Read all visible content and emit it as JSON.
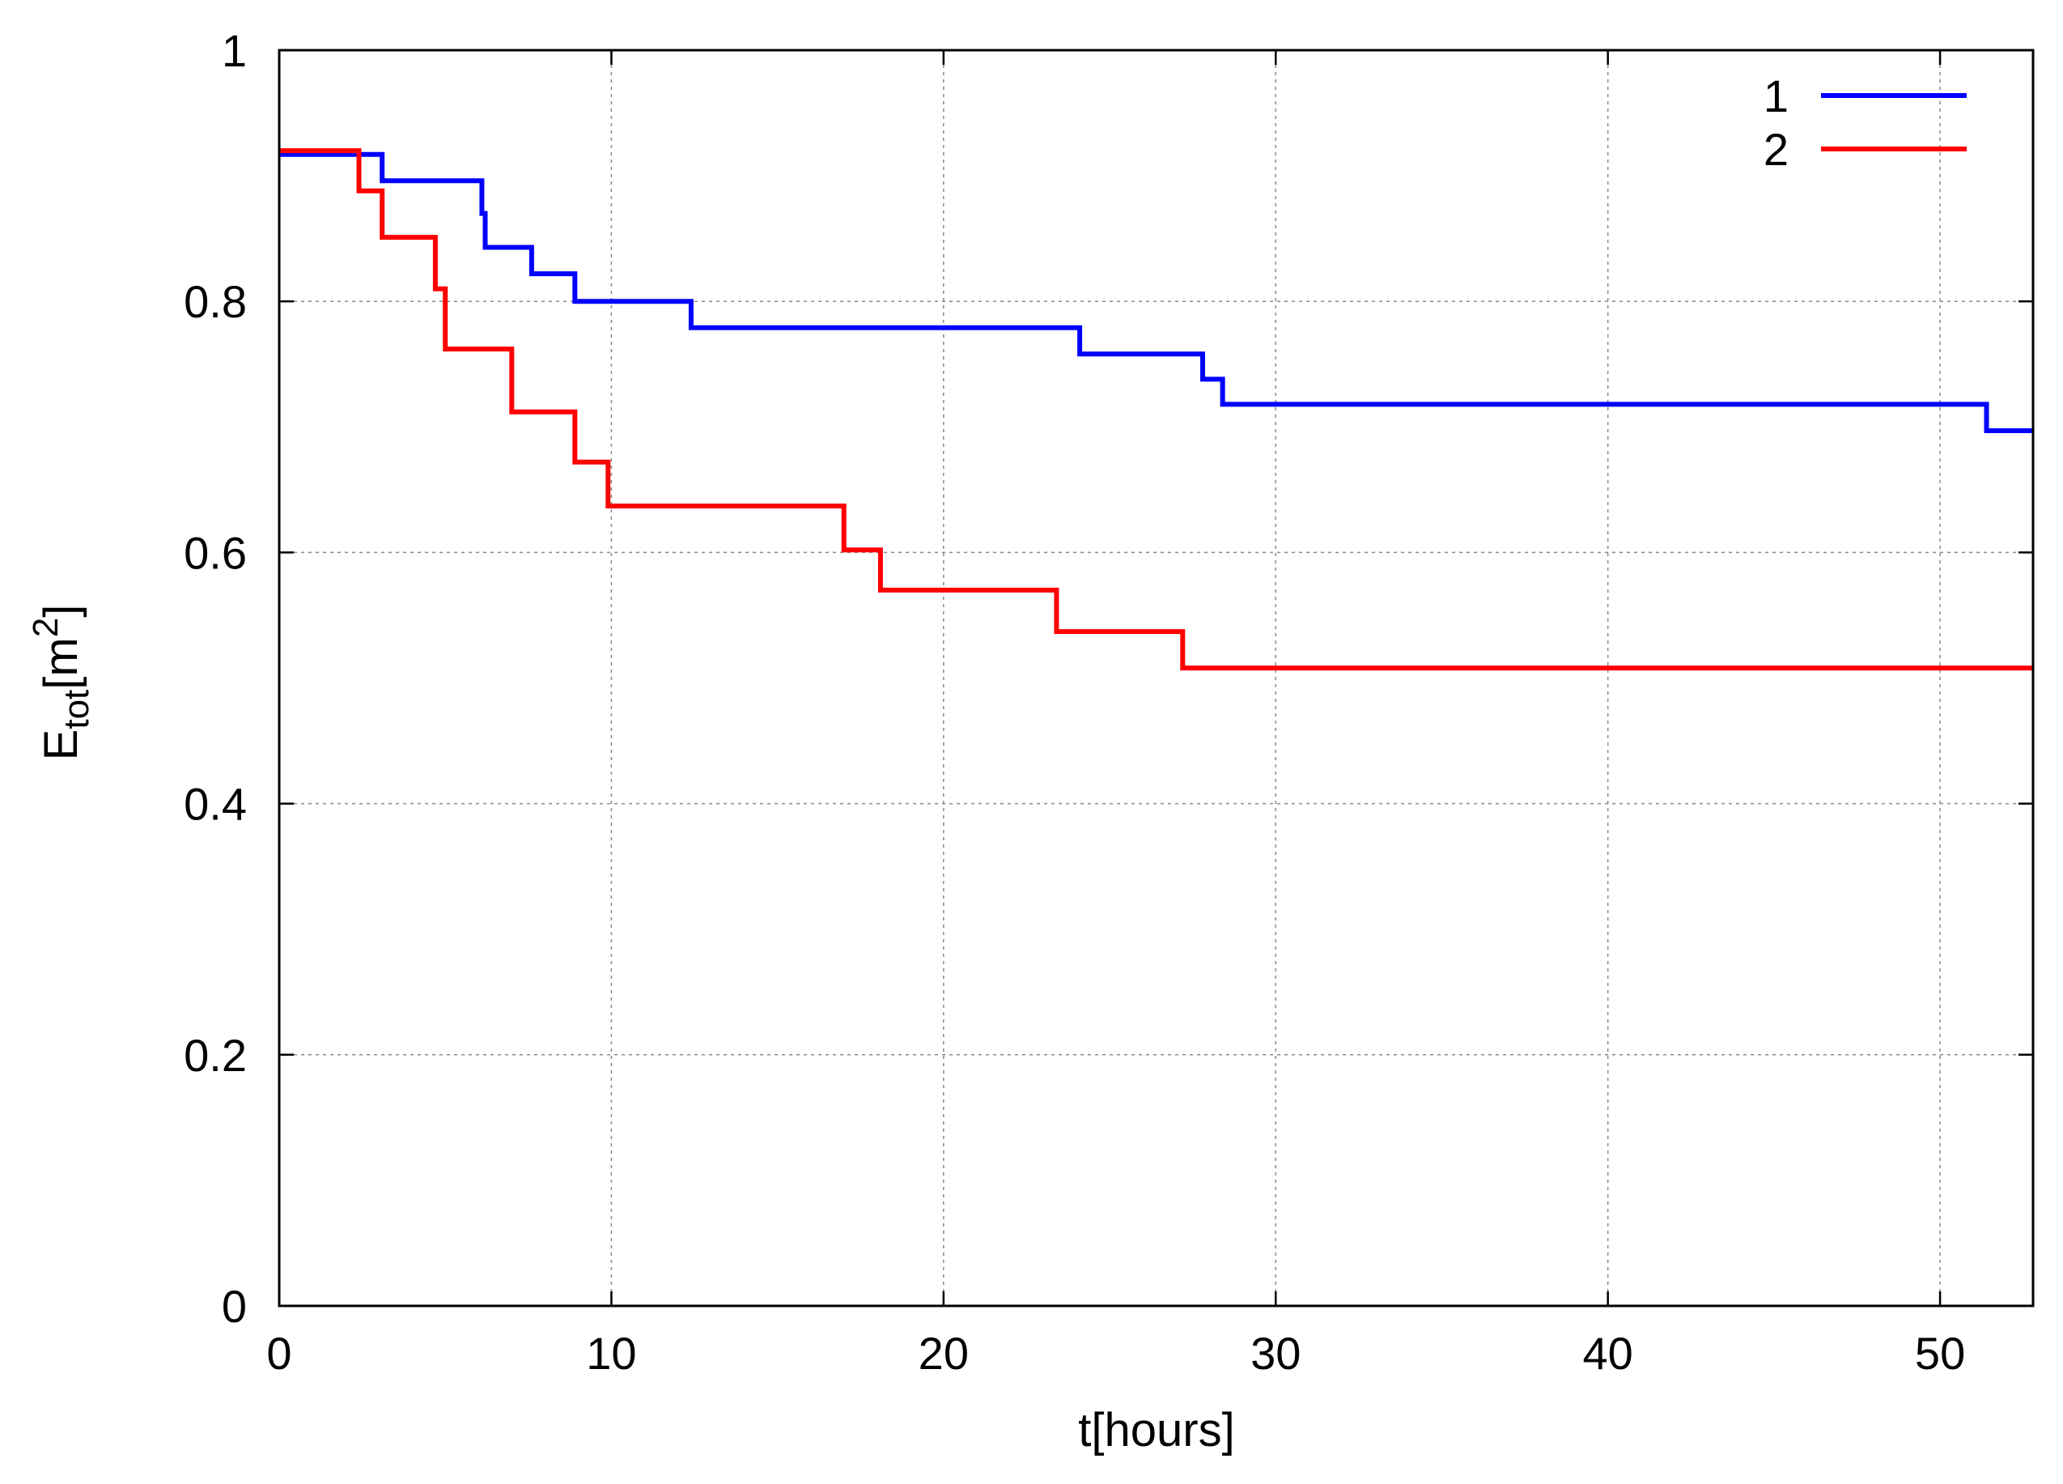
{
  "chart_data": {
    "type": "line",
    "step": true,
    "title": "",
    "xlabel": "t[hours]",
    "ylabel": {
      "main": "E",
      "sub": "tot",
      "bracket_open": "[m",
      "sup": "2",
      "bracket_close": "]"
    },
    "xlim": [
      0,
      52.8
    ],
    "ylim": [
      0,
      1
    ],
    "grid": true,
    "legend_position": "top-right",
    "x_ticks": [
      "0",
      "10",
      "20",
      "30",
      "40",
      "50"
    ],
    "y_ticks": [
      "0",
      "0.2",
      "0.4",
      "0.6",
      "0.8",
      "1"
    ],
    "series": [
      {
        "name": "1",
        "color": "#0000ff",
        "points": [
          [
            0,
            0.917
          ],
          [
            3.1,
            0.917
          ],
          [
            3.1,
            0.896
          ],
          [
            6.1,
            0.896
          ],
          [
            6.1,
            0.87
          ],
          [
            6.2,
            0.87
          ],
          [
            6.2,
            0.843
          ],
          [
            7.6,
            0.843
          ],
          [
            7.6,
            0.822
          ],
          [
            8.9,
            0.822
          ],
          [
            8.9,
            0.8
          ],
          [
            12.4,
            0.8
          ],
          [
            12.4,
            0.779
          ],
          [
            24.1,
            0.779
          ],
          [
            24.1,
            0.758
          ],
          [
            27.8,
            0.758
          ],
          [
            27.8,
            0.738
          ],
          [
            28.4,
            0.738
          ],
          [
            28.4,
            0.718
          ],
          [
            51.4,
            0.718
          ],
          [
            51.4,
            0.697
          ],
          [
            52.8,
            0.697
          ]
        ]
      },
      {
        "name": "2",
        "color": "#ff0000",
        "points": [
          [
            0,
            0.92
          ],
          [
            2.4,
            0.92
          ],
          [
            2.4,
            0.888
          ],
          [
            3.1,
            0.888
          ],
          [
            3.1,
            0.851
          ],
          [
            4.7,
            0.851
          ],
          [
            4.7,
            0.81
          ],
          [
            5.0,
            0.81
          ],
          [
            5.0,
            0.762
          ],
          [
            7.0,
            0.762
          ],
          [
            7.0,
            0.712
          ],
          [
            8.9,
            0.712
          ],
          [
            8.9,
            0.672
          ],
          [
            9.9,
            0.672
          ],
          [
            9.9,
            0.637
          ],
          [
            17.0,
            0.637
          ],
          [
            17.0,
            0.602
          ],
          [
            18.1,
            0.602
          ],
          [
            18.1,
            0.57
          ],
          [
            23.4,
            0.57
          ],
          [
            23.4,
            0.537
          ],
          [
            27.2,
            0.537
          ],
          [
            27.2,
            0.508
          ],
          [
            52.8,
            0.508
          ]
        ]
      }
    ]
  }
}
